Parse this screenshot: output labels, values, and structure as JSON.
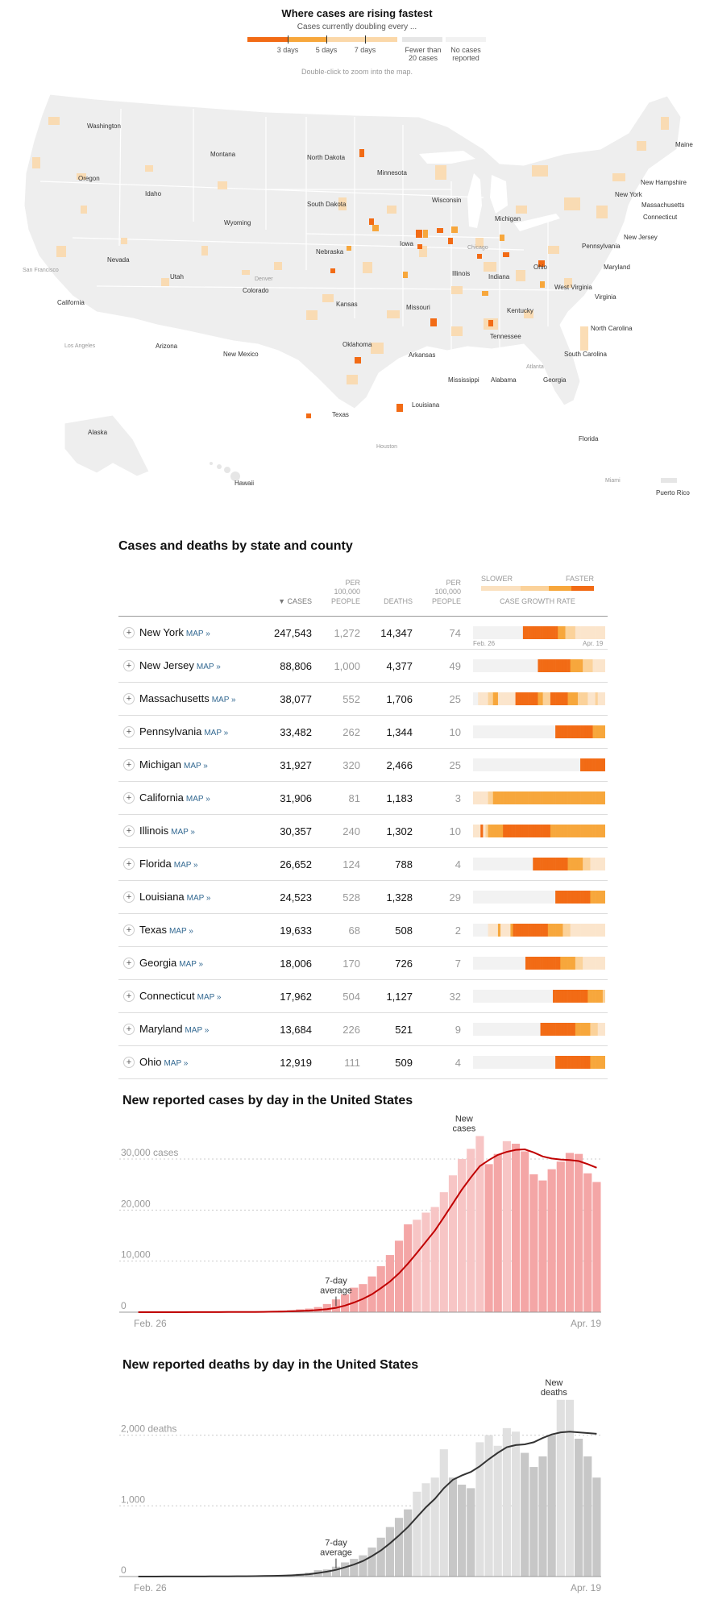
{
  "legend": {
    "title": "Where cases are rising fastest",
    "subtitle": "Cases currently doubling every ...",
    "labels": [
      "3 days",
      "5 days",
      "7 days",
      "Fewer than 20 cases",
      "No cases reported"
    ],
    "hint": "Double-click to zoom into the map.",
    "colors": [
      "#f26b15",
      "#f7a73c",
      "#fbd8a9",
      "#e6e6e6",
      "#f2f2f2"
    ]
  },
  "map": {
    "states": [
      "Washington",
      "Montana",
      "North Dakota",
      "Minnesota",
      "Oregon",
      "Idaho",
      "South Dakota",
      "Wisconsin",
      "Michigan",
      "Wyoming",
      "Nebraska",
      "Iowa",
      "Nevada",
      "Utah",
      "Colorado",
      "Illinois",
      "Indiana",
      "Ohio",
      "California",
      "Kansas",
      "Missouri",
      "Kentucky",
      "West Virginia",
      "Virginia",
      "Arizona",
      "New Mexico",
      "Oklahoma",
      "Arkansas",
      "Tennessee",
      "North Carolina",
      "Texas",
      "Louisiana",
      "Mississippi",
      "Alabama",
      "Georgia",
      "South Carolina",
      "Florida",
      "Alaska",
      "Hawaii",
      "Maine",
      "New Hampshire",
      "New York",
      "Massachusetts",
      "Connecticut",
      "Pennsylvania",
      "New Jersey",
      "Maryland",
      "Puerto Rico"
    ],
    "cities": [
      "San Francisco",
      "Los Angeles",
      "Denver",
      "Chicago",
      "Atlanta",
      "Houston",
      "Miami"
    ]
  },
  "table": {
    "title": "Cases and deaths by state and county",
    "headers": {
      "cases": "▼ CASES",
      "per_a": "PER",
      "per_b": "100,000",
      "per_c": "PEOPLE",
      "deaths": "DEATHS",
      "growth": "CASE GROWTH RATE",
      "slower": "SLOWER",
      "faster": "FASTER"
    },
    "map_link": "MAP »",
    "spark_start": "Feb. 26",
    "spark_end": "Apr. 19",
    "rows": [
      {
        "state": "New York",
        "cases": "247,543",
        "cases_per": "1,272",
        "deaths": "14,347",
        "deaths_per": "74",
        "growth": [
          0,
          0,
          0,
          0,
          0,
          0,
          0,
          0,
          0,
          0,
          0,
          0,
          0,
          0,
          0,
          0,
          0,
          0,
          0,
          0,
          4,
          4,
          4,
          4,
          4,
          4,
          4,
          4,
          4,
          4,
          4,
          4,
          4,
          4,
          3,
          3,
          3,
          2,
          2,
          2,
          2,
          1,
          1,
          1,
          1,
          1,
          1,
          1,
          1,
          1,
          1,
          1,
          1
        ]
      },
      {
        "state": "New Jersey",
        "cases": "88,806",
        "cases_per": "1,000",
        "deaths": "4,377",
        "deaths_per": "49",
        "growth": [
          0,
          0,
          0,
          0,
          0,
          0,
          0,
          0,
          0,
          0,
          0,
          0,
          0,
          0,
          0,
          0,
          0,
          0,
          0,
          0,
          0,
          0,
          0,
          0,
          0,
          0,
          4,
          4,
          4,
          4,
          4,
          4,
          4,
          4,
          4,
          4,
          4,
          4,
          4,
          3,
          3,
          3,
          3,
          3,
          2,
          2,
          2,
          2,
          1,
          1,
          1,
          1,
          1
        ]
      },
      {
        "state": "Massachusetts",
        "cases": "38,077",
        "cases_per": "552",
        "deaths": "1,706",
        "deaths_per": "25",
        "growth": [
          0,
          0,
          1,
          1,
          1,
          1,
          2,
          2,
          3,
          3,
          1,
          1,
          1,
          1,
          1,
          1,
          1,
          4,
          4,
          4,
          4,
          4,
          4,
          4,
          4,
          4,
          3,
          3,
          2,
          2,
          2,
          4,
          4,
          4,
          4,
          4,
          4,
          4,
          3,
          3,
          3,
          3,
          2,
          2,
          2,
          2,
          1,
          1,
          1,
          2,
          1,
          1,
          1
        ]
      },
      {
        "state": "Pennsylvania",
        "cases": "33,482",
        "cases_per": "262",
        "deaths": "1,344",
        "deaths_per": "10",
        "growth": [
          0,
          0,
          0,
          0,
          0,
          0,
          0,
          0,
          0,
          0,
          0,
          0,
          0,
          0,
          0,
          0,
          0,
          0,
          0,
          0,
          0,
          0,
          0,
          0,
          0,
          0,
          0,
          0,
          0,
          0,
          0,
          0,
          0,
          4,
          4,
          4,
          4,
          4,
          4,
          4,
          4,
          4,
          4,
          4,
          4,
          4,
          4,
          4,
          3,
          3,
          3,
          3,
          3
        ]
      },
      {
        "state": "Michigan",
        "cases": "31,927",
        "cases_per": "320",
        "deaths": "2,466",
        "deaths_per": "25",
        "growth": [
          0,
          0,
          0,
          0,
          0,
          0,
          0,
          0,
          0,
          0,
          0,
          0,
          0,
          0,
          0,
          0,
          0,
          0,
          0,
          0,
          0,
          0,
          0,
          0,
          0,
          0,
          0,
          0,
          0,
          0,
          0,
          0,
          0,
          0,
          0,
          0,
          0,
          0,
          0,
          0,
          0,
          0,
          0,
          4,
          4,
          4,
          4,
          4,
          4,
          4,
          4,
          4,
          4
        ]
      },
      {
        "state": "California",
        "cases": "31,906",
        "cases_per": "81",
        "deaths": "1,183",
        "deaths_per": "3",
        "growth": [
          1,
          1,
          1,
          1,
          1,
          1,
          2,
          2,
          3,
          3,
          3,
          3,
          3,
          3,
          3,
          3,
          3,
          3,
          3,
          3,
          3,
          3,
          3,
          3,
          3,
          3,
          3,
          3,
          3,
          3,
          3,
          3,
          3,
          3,
          3,
          3,
          3,
          3,
          3,
          3,
          3,
          3,
          3,
          3,
          3,
          3,
          3,
          3,
          3,
          3,
          3,
          3,
          3
        ]
      },
      {
        "state": "Illinois",
        "cases": "30,357",
        "cases_per": "240",
        "deaths": "1,302",
        "deaths_per": "10",
        "growth": [
          1,
          1,
          1,
          4,
          1,
          2,
          3,
          3,
          3,
          3,
          3,
          3,
          4,
          4,
          4,
          4,
          4,
          4,
          4,
          4,
          4,
          4,
          4,
          4,
          4,
          4,
          4,
          4,
          4,
          4,
          4,
          3,
          3,
          3,
          3,
          3,
          3,
          3,
          3,
          3,
          3,
          3,
          3,
          3,
          3,
          3,
          3,
          3,
          3,
          3,
          3,
          3,
          3
        ]
      },
      {
        "state": "Florida",
        "cases": "26,652",
        "cases_per": "124",
        "deaths": "788",
        "deaths_per": "4",
        "growth": [
          0,
          0,
          0,
          0,
          0,
          0,
          0,
          0,
          0,
          0,
          0,
          0,
          0,
          0,
          0,
          0,
          0,
          0,
          0,
          0,
          0,
          0,
          0,
          0,
          0,
          0,
          0,
          0,
          0,
          0,
          0,
          0,
          0,
          0,
          0,
          0,
          0,
          0,
          0,
          0,
          0,
          0,
          0,
          0,
          0,
          0,
          0,
          0,
          0,
          0,
          0,
          0,
          0
        ]
      },
      {
        "state": "Louisiana",
        "cases": "24,523",
        "cases_per": "528",
        "deaths": "1,328",
        "deaths_per": "29",
        "growth": [
          0,
          0,
          0,
          0,
          0,
          0,
          0,
          0,
          0,
          0,
          0,
          0,
          0,
          0,
          0,
          0,
          0,
          0,
          0,
          0,
          0,
          0,
          0,
          0,
          0,
          0,
          0,
          0,
          0,
          0,
          0,
          0,
          0,
          0,
          0,
          0,
          0,
          0,
          0,
          0,
          0,
          0,
          0,
          0,
          0,
          0,
          0,
          0,
          0,
          0,
          0,
          0,
          0
        ]
      },
      {
        "state": "Texas",
        "cases": "19,633",
        "cases_per": "68",
        "deaths": "508",
        "deaths_per": "2",
        "growth": [
          0,
          0,
          0,
          0,
          0,
          0,
          0,
          0,
          0,
          0,
          0,
          0,
          0,
          0,
          0,
          0,
          0,
          0,
          0,
          0,
          0,
          0,
          0,
          0,
          0,
          0,
          0,
          0,
          0,
          0,
          0,
          0,
          0,
          0,
          0,
          0,
          0,
          0,
          0,
          0,
          0,
          0,
          0,
          0,
          0,
          0,
          0,
          0,
          0,
          0,
          0,
          0,
          0
        ]
      },
      {
        "state": "Georgia",
        "cases": "18,006",
        "cases_per": "170",
        "deaths": "726",
        "deaths_per": "7",
        "growth": [
          0,
          0,
          0,
          0,
          0,
          0,
          0,
          0,
          0,
          0,
          0,
          0,
          0,
          0,
          0,
          0,
          0,
          0,
          0,
          0,
          0,
          0,
          0,
          0,
          0,
          0,
          0,
          0,
          0,
          0,
          0,
          0,
          0,
          0,
          0,
          0,
          0,
          0,
          0,
          0,
          0,
          0,
          0,
          0,
          0,
          0,
          0,
          0,
          0,
          0,
          0,
          0,
          0
        ]
      },
      {
        "state": "Connecticut",
        "cases": "17,962",
        "cases_per": "504",
        "deaths": "1,127",
        "deaths_per": "32",
        "growth": [
          0,
          0,
          0,
          0,
          0,
          0,
          0,
          0,
          0,
          0,
          0,
          0,
          0,
          0,
          0,
          0,
          0,
          0,
          0,
          0,
          0,
          0,
          0,
          0,
          0,
          0,
          0,
          0,
          0,
          0,
          0,
          0,
          0,
          0,
          0,
          0,
          0,
          0,
          0,
          0,
          0,
          0,
          0,
          0,
          0,
          0,
          0,
          0,
          0,
          0,
          0,
          0,
          0
        ]
      },
      {
        "state": "Maryland",
        "cases": "13,684",
        "cases_per": "226",
        "deaths": "521",
        "deaths_per": "9",
        "growth": [
          0,
          0,
          0,
          0,
          0,
          0,
          0,
          0,
          0,
          0,
          0,
          0,
          0,
          0,
          0,
          0,
          0,
          0,
          0,
          0,
          0,
          0,
          0,
          0,
          0,
          0,
          0,
          0,
          0,
          0,
          0,
          0,
          0,
          0,
          0,
          0,
          0,
          0,
          0,
          0,
          0,
          0,
          0,
          0,
          0,
          0,
          0,
          0,
          0,
          0,
          0,
          0,
          0
        ]
      },
      {
        "state": "Ohio",
        "cases": "12,919",
        "cases_per": "111",
        "deaths": "509",
        "deaths_per": "4",
        "growth": [
          0,
          0,
          0,
          0,
          0,
          0,
          0,
          0,
          0,
          0,
          0,
          0,
          0,
          0,
          0,
          0,
          0,
          0,
          0,
          0,
          0,
          0,
          0,
          0,
          0,
          0,
          0,
          0,
          0,
          0,
          0,
          0,
          0,
          0,
          0,
          0,
          0,
          0,
          0,
          0,
          0,
          0,
          0,
          0,
          0,
          0,
          0,
          0,
          0,
          0,
          0,
          0,
          0
        ]
      }
    ]
  },
  "chart_data": [
    {
      "type": "bar",
      "title": "New reported cases by day in the United States",
      "x_start": "Feb. 26",
      "x_end": "Apr. 19",
      "y_ticks": [
        0,
        10000,
        20000,
        30000
      ],
      "y_tick_labels": [
        "0",
        "10,000",
        "20,000",
        "30,000 cases"
      ],
      "ylim": [
        0,
        36000
      ],
      "bar_label": "New cases",
      "avg_label": "7-day average",
      "bar_color": "#f4a6a6",
      "bar_color_alt": "#f7c5c5",
      "line_color": "#c00000",
      "series": [
        {
          "name": "New cases",
          "values": [
            3,
            4,
            3,
            8,
            5,
            10,
            15,
            20,
            25,
            35,
            45,
            60,
            80,
            100,
            140,
            200,
            280,
            380,
            550,
            700,
            1000,
            1600,
            2500,
            3500,
            4800,
            5500,
            7000,
            9000,
            11200,
            14000,
            17200,
            18100,
            19500,
            20600,
            23500,
            26800,
            30000,
            32000,
            34500,
            29000,
            31000,
            33500,
            33000,
            31500,
            27000,
            25800,
            28000,
            29500,
            31200,
            31000,
            27200,
            25500
          ]
        },
        {
          "name": "7-day average",
          "values": [
            3,
            4,
            4,
            5,
            5,
            6,
            8,
            10,
            13,
            18,
            24,
            31,
            41,
            52,
            69,
            91,
            124,
            166,
            229,
            307,
            424,
            580,
            860,
            1300,
            1900,
            2600,
            3500,
            4700,
            6000,
            7600,
            9500,
            11600,
            13800,
            16000,
            18600,
            21300,
            24000,
            26400,
            28600,
            29800,
            30800,
            31400,
            31800,
            31900,
            31300,
            30500,
            30100,
            29900,
            29800,
            29600,
            29000,
            28300
          ]
        }
      ]
    },
    {
      "type": "bar",
      "title": "New reported deaths by day in the United States",
      "x_start": "Feb. 26",
      "x_end": "Apr. 19",
      "y_ticks": [
        0,
        1000,
        2000
      ],
      "y_tick_labels": [
        "0",
        "1,000",
        "2,000 deaths"
      ],
      "ylim": [
        0,
        2600
      ],
      "bar_label": "New deaths",
      "avg_label": "7-day average",
      "bar_color": "#c7c7c7",
      "bar_color_alt": "#e0e0e0",
      "line_color": "#333333",
      "series": [
        {
          "name": "New deaths",
          "values": [
            0,
            0,
            0,
            1,
            1,
            1,
            2,
            2,
            2,
            3,
            4,
            5,
            7,
            9,
            11,
            14,
            20,
            25,
            40,
            55,
            90,
            100,
            140,
            200,
            250,
            300,
            410,
            550,
            700,
            830,
            950,
            1200,
            1320,
            1400,
            1800,
            1400,
            1300,
            1250,
            1900,
            2000,
            1850,
            2100,
            2050,
            1750,
            1550,
            1700,
            2000,
            2500,
            2500,
            1950,
            1700,
            1400
          ]
        },
        {
          "name": "7-day average",
          "values": [
            0,
            0,
            0,
            1,
            1,
            1,
            1,
            1,
            2,
            2,
            3,
            4,
            5,
            6,
            8,
            10,
            13,
            17,
            24,
            33,
            50,
            70,
            95,
            130,
            170,
            220,
            290,
            370,
            470,
            580,
            700,
            840,
            980,
            1100,
            1250,
            1370,
            1430,
            1480,
            1560,
            1660,
            1750,
            1830,
            1860,
            1870,
            1900,
            1960,
            2010,
            2040,
            2050,
            2040,
            2030,
            2020
          ]
        }
      ]
    }
  ]
}
